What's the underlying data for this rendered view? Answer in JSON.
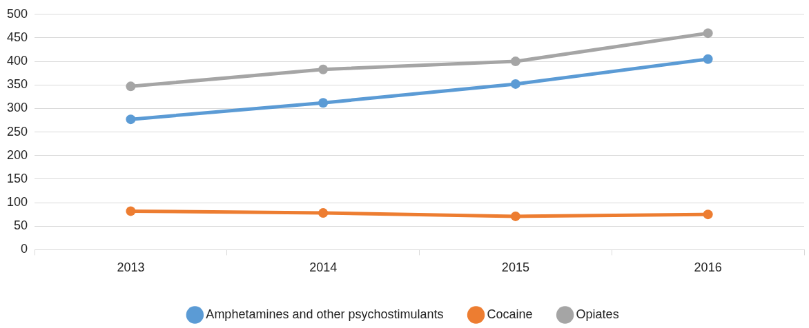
{
  "chart_data": {
    "type": "line",
    "categories": [
      "2013",
      "2014",
      "2015",
      "2016"
    ],
    "series": [
      {
        "name": "Amphetamines and other psychostimulants",
        "color": "#5b9bd5",
        "values": [
          277,
          312,
          352,
          405
        ]
      },
      {
        "name": "Cocaine",
        "color": "#ed7d31",
        "values": [
          82,
          78,
          71,
          75
        ]
      },
      {
        "name": "Opiates",
        "color": "#a5a5a5",
        "values": [
          347,
          383,
          400,
          460
        ]
      }
    ],
    "ylim": [
      0,
      500
    ],
    "yticks": [
      0,
      50,
      100,
      150,
      200,
      250,
      300,
      350,
      400,
      450,
      500
    ],
    "grid": "y",
    "legend": "bottom",
    "marker": "circle",
    "line_style": "solid"
  }
}
